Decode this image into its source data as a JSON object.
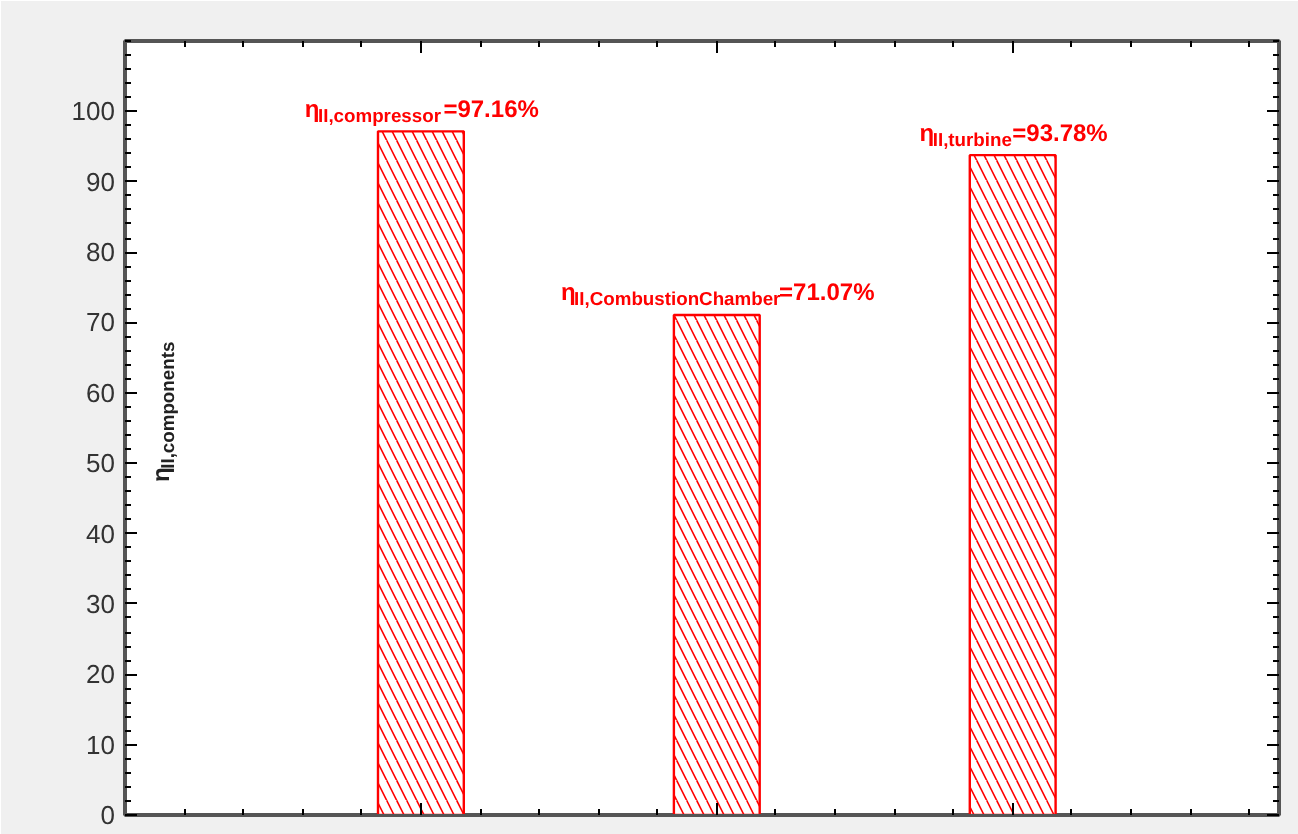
{
  "chart_data": {
    "type": "bar",
    "ylabel": "η$_{II,components}$",
    "categories": [
      null,
      null,
      null
    ],
    "values": [
      97.16,
      71.07,
      93.78
    ],
    "color": "#ff0000",
    "value_labels": [
      "η$_{II,compressor}$=97.16%",
      "η$_{II,CombustionChamber}$=71.07%",
      "η$_{II,turbine}$=93.78%"
    ],
    "ylim": [
      0,
      110
    ],
    "yticks": [
      0,
      10,
      20,
      30,
      40,
      50,
      60,
      70,
      80,
      90,
      100
    ],
    "tick_labels": "y",
    "grid": false
  }
}
